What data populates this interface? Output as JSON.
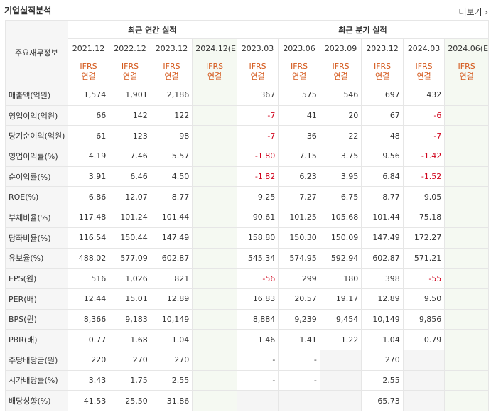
{
  "header": {
    "title": "기업실적분석",
    "more_label": "더보기"
  },
  "table": {
    "corner_label": "주요재무정보",
    "annual_group": "최근 연간 실적",
    "quarter_group": "최근 분기 실적",
    "annual_dates": [
      "2021.12",
      "2022.12",
      "2023.12",
      "2024.12(E)"
    ],
    "quarter_dates": [
      "2023.03",
      "2023.06",
      "2023.09",
      "2023.12",
      "2024.03",
      "2024.06(E)"
    ],
    "ifrs_top": "IFRS",
    "ifrs_bottom": "연결",
    "rows": [
      {
        "label": "매출액(억원)",
        "annual": [
          "1,574",
          "1,901",
          "2,186",
          ""
        ],
        "quarter": [
          "367",
          "575",
          "546",
          "697",
          "432",
          ""
        ]
      },
      {
        "label": "영업이익(억원)",
        "annual": [
          "66",
          "142",
          "122",
          ""
        ],
        "quarter": [
          "-7",
          "41",
          "20",
          "67",
          "-6",
          ""
        ]
      },
      {
        "label": "당기순이익(억원)",
        "annual": [
          "61",
          "123",
          "98",
          ""
        ],
        "quarter": [
          "-7",
          "36",
          "22",
          "48",
          "-7",
          ""
        ]
      },
      {
        "label": "영업이익률(%)",
        "annual": [
          "4.19",
          "7.46",
          "5.57",
          ""
        ],
        "quarter": [
          "-1.80",
          "7.15",
          "3.75",
          "9.56",
          "-1.42",
          ""
        ]
      },
      {
        "label": "순이익률(%)",
        "annual": [
          "3.91",
          "6.46",
          "4.50",
          ""
        ],
        "quarter": [
          "-1.82",
          "6.23",
          "3.95",
          "6.84",
          "-1.52",
          ""
        ]
      },
      {
        "label": "ROE(%)",
        "annual": [
          "6.86",
          "12.07",
          "8.77",
          ""
        ],
        "quarter": [
          "9.25",
          "7.27",
          "6.75",
          "8.77",
          "9.05",
          ""
        ]
      },
      {
        "label": "부채비율(%)",
        "annual": [
          "117.48",
          "101.24",
          "101.44",
          ""
        ],
        "quarter": [
          "90.61",
          "101.25",
          "105.68",
          "101.44",
          "75.18",
          ""
        ]
      },
      {
        "label": "당좌비율(%)",
        "annual": [
          "116.54",
          "150.44",
          "147.49",
          ""
        ],
        "quarter": [
          "158.80",
          "150.30",
          "150.09",
          "147.49",
          "172.27",
          ""
        ]
      },
      {
        "label": "유보율(%)",
        "annual": [
          "488.02",
          "577.09",
          "602.87",
          ""
        ],
        "quarter": [
          "545.34",
          "574.95",
          "592.94",
          "602.87",
          "571.21",
          ""
        ]
      },
      {
        "label": "EPS(원)",
        "annual": [
          "516",
          "1,026",
          "821",
          ""
        ],
        "quarter": [
          "-56",
          "299",
          "180",
          "398",
          "-55",
          ""
        ]
      },
      {
        "label": "PER(배)",
        "annual": [
          "12.44",
          "15.01",
          "12.89",
          ""
        ],
        "quarter": [
          "16.83",
          "20.57",
          "19.17",
          "12.89",
          "9.50",
          ""
        ]
      },
      {
        "label": "BPS(원)",
        "annual": [
          "8,366",
          "9,183",
          "10,149",
          ""
        ],
        "quarter": [
          "8,884",
          "9,239",
          "9,454",
          "10,149",
          "9,856",
          ""
        ]
      },
      {
        "label": "PBR(배)",
        "annual": [
          "0.77",
          "1.68",
          "1.04",
          ""
        ],
        "quarter": [
          "1.46",
          "1.41",
          "1.22",
          "1.04",
          "0.79",
          ""
        ]
      },
      {
        "label": "주당배당금(원)",
        "annual": [
          "220",
          "270",
          "270",
          ""
        ],
        "quarter": [
          "-",
          "-",
          "",
          "270",
          "",
          ""
        ]
      },
      {
        "label": "시가배당률(%)",
        "annual": [
          "3.43",
          "1.75",
          "2.55",
          ""
        ],
        "quarter": [
          "-",
          "-",
          "",
          "2.55",
          "",
          ""
        ]
      },
      {
        "label": "배당성향(%)",
        "annual": [
          "41.53",
          "25.50",
          "31.86",
          ""
        ],
        "quarter": [
          "",
          "",
          "",
          "65.73",
          "",
          ""
        ]
      }
    ]
  }
}
